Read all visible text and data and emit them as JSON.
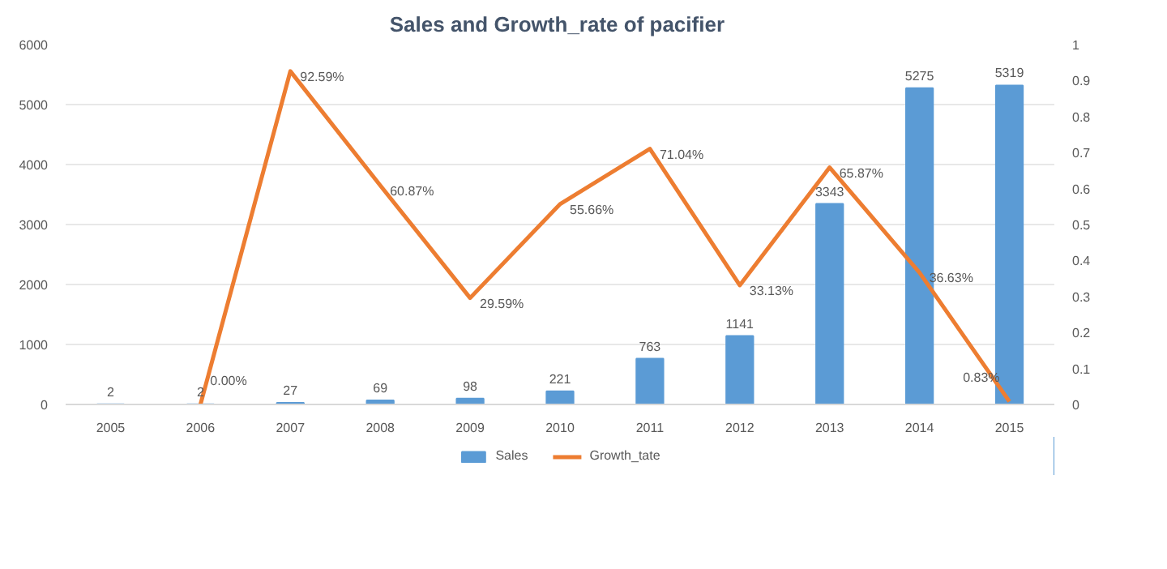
{
  "chart_data": {
    "type": "bar",
    "title": "Sales and Growth_rate  of pacifier",
    "categories": [
      "2005",
      "2006",
      "2007",
      "2008",
      "2009",
      "2010",
      "2011",
      "2012",
      "2013",
      "2014",
      "2015"
    ],
    "series": [
      {
        "name": "Sales",
        "color": "#5b9bd5",
        "values": [
          2,
          2,
          27,
          69,
          98,
          221,
          763,
          1141,
          3343,
          5275,
          5319
        ]
      },
      {
        "name": "Growth_tate",
        "type": "line",
        "axis": "y2",
        "color": "#ed7d31",
        "values": [
          null,
          0.0,
          0.9259,
          0.6087,
          0.2959,
          0.5566,
          0.7104,
          0.3313,
          0.6587,
          0.3663,
          0.0083
        ],
        "value_labels": [
          null,
          "0.00%",
          "92.59%",
          "60.87%",
          "29.59%",
          "55.66%",
          "71.04%",
          "33.13%",
          "65.87%",
          "36.63%",
          "0.83%"
        ]
      }
    ],
    "ylim": [
      0,
      6000
    ],
    "yticks": [
      0,
      1000,
      2000,
      3000,
      4000,
      5000,
      6000
    ],
    "y2lim": [
      0,
      1
    ],
    "y2ticks": [
      0,
      0.1,
      0.2,
      0.3,
      0.4,
      0.5,
      0.6,
      0.7,
      0.8,
      0.9,
      1
    ],
    "data_labels": true,
    "grid": "y",
    "legend": "bottom",
    "marker": "none",
    "line_style": "solid"
  }
}
